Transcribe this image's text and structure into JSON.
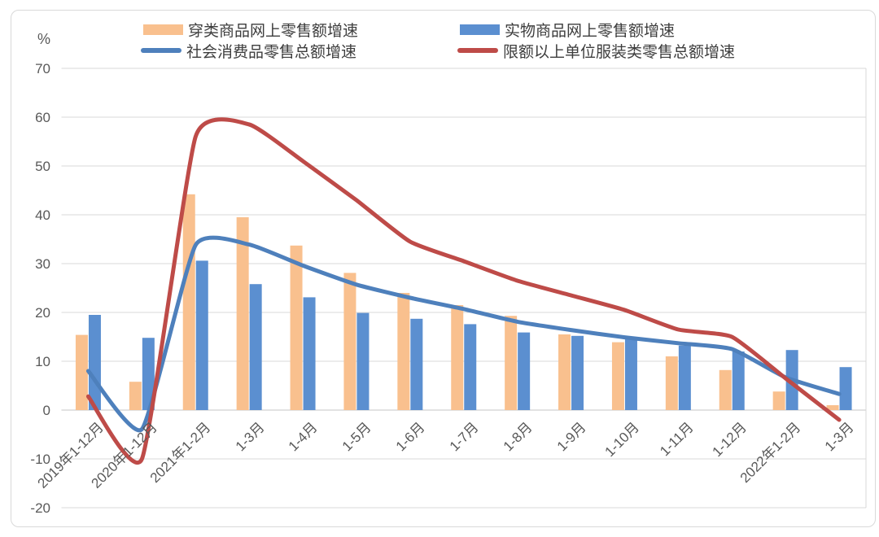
{
  "chart_data": {
    "type": "bar",
    "subtype": "combo-bar-line",
    "title": "",
    "unit_label": "%",
    "legend_position": "top",
    "grid": true,
    "categories": [
      "2019年1-12月",
      "2020年1-12月",
      "2021年1-2月",
      "1-3月",
      "1-4月",
      "1-5月",
      "1-6月",
      "1-7月",
      "1-8月",
      "1-9月",
      "1-10月",
      "1-11月",
      "1-12月",
      "2022年1-2月",
      "1-3月"
    ],
    "series": [
      {
        "name": "穿类商品网上零售额增速",
        "type": "bar",
        "color": "#f9c08e",
        "values": [
          15.4,
          5.8,
          44.2,
          39.5,
          33.7,
          28.1,
          24.0,
          21.5,
          19.3,
          15.5,
          13.9,
          11.0,
          8.2,
          3.8,
          1.0
        ]
      },
      {
        "name": "实物商品网上零售额增速",
        "type": "bar",
        "color": "#5b8fd0",
        "values": [
          19.5,
          14.8,
          30.6,
          25.8,
          23.1,
          19.9,
          18.7,
          17.6,
          15.9,
          15.2,
          14.6,
          13.2,
          12.0,
          12.3,
          8.8
        ]
      },
      {
        "name": "社会消费品零售总额增速",
        "type": "line",
        "color": "#4e80bc",
        "values": [
          8.0,
          -3.9,
          33.8,
          33.9,
          29.6,
          25.7,
          23.0,
          20.7,
          18.1,
          16.4,
          14.9,
          13.7,
          12.5,
          6.7,
          3.3
        ]
      },
      {
        "name": "限额以上单位服装类零售总额增速",
        "type": "line",
        "color": "#be4b48",
        "values": [
          2.8,
          -10.0,
          56.0,
          58.5,
          51.0,
          43.0,
          34.5,
          30.5,
          26.5,
          23.5,
          20.5,
          16.5,
          15.0,
          6.5,
          -2.0
        ]
      }
    ],
    "y_axis": {
      "min": -20,
      "max": 70,
      "step": 10,
      "tick_labels": [
        "70",
        "60",
        "50",
        "40",
        "30",
        "20",
        "10",
        "0",
        "-10",
        "-20"
      ]
    },
    "colors": {
      "gridline": "#d9d9d9",
      "zero_axis": "#c4c4c4",
      "plot_border": "#d9d9d9",
      "axis_text": "#595959",
      "legend_text": "#3d3d3d",
      "frame_border": "#d9d9d9",
      "background": "#ffffff"
    }
  }
}
